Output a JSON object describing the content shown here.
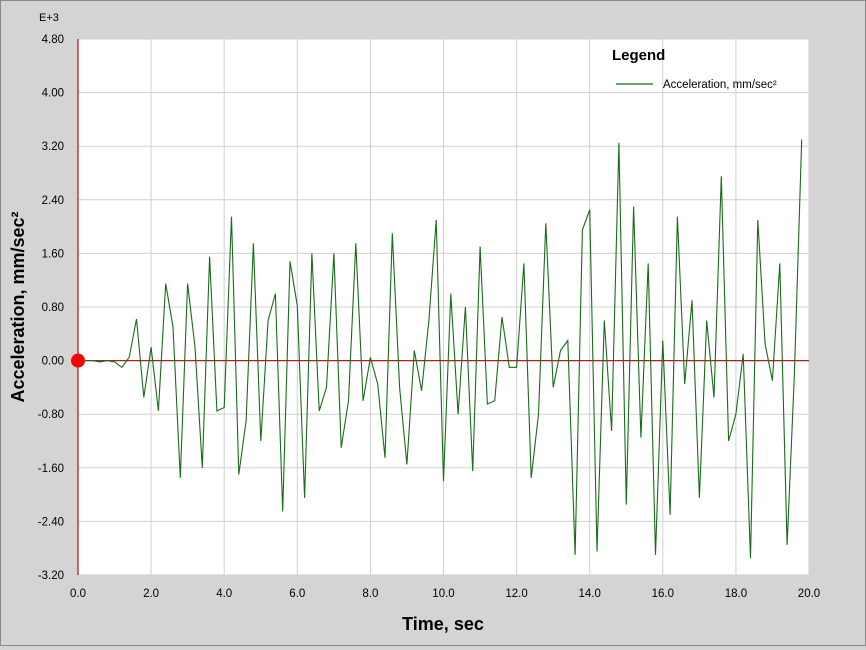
{
  "chart_data": {
    "type": "line",
    "xlabel": "Time,  sec",
    "ylabel": "Acceleration,  mm/sec²",
    "y_multiplier_label": "E+3",
    "xlim": [
      0,
      20
    ],
    "ylim": [
      -3.2,
      4.8
    ],
    "x_ticks": [
      "0.0",
      "2.0",
      "4.0",
      "6.0",
      "8.0",
      "10.0",
      "12.0",
      "14.0",
      "16.0",
      "18.0",
      "20.0"
    ],
    "y_ticks": [
      "-3.20",
      "-2.40",
      "-1.60",
      "-0.80",
      "0.00",
      "0.80",
      "1.60",
      "2.40",
      "3.20",
      "4.00",
      "4.80"
    ],
    "grid": true,
    "legend": {
      "title": "Legend",
      "position": "top-right"
    },
    "marker": {
      "x": 0,
      "y": 0,
      "color": "#ff0000"
    },
    "zero_line_color": "#b02020",
    "series": [
      {
        "name": "Acceleration, mm/sec²",
        "color": "#1a6b1a",
        "points": [
          [
            0,
            0
          ],
          [
            0.4,
            0
          ],
          [
            0.6,
            -0.02
          ],
          [
            0.8,
            0
          ],
          [
            1.0,
            -0.02
          ],
          [
            1.2,
            -0.1
          ],
          [
            1.4,
            0.05
          ],
          [
            1.6,
            0.62
          ],
          [
            1.8,
            -0.55
          ],
          [
            2.0,
            0.2
          ],
          [
            2.2,
            -0.75
          ],
          [
            2.4,
            1.15
          ],
          [
            2.6,
            0.5
          ],
          [
            2.8,
            -1.75
          ],
          [
            3.0,
            1.15
          ],
          [
            3.2,
            0.2
          ],
          [
            3.4,
            -1.6
          ],
          [
            3.6,
            1.55
          ],
          [
            3.8,
            -0.75
          ],
          [
            4.0,
            -0.7
          ],
          [
            4.2,
            2.15
          ],
          [
            4.4,
            -1.7
          ],
          [
            4.6,
            -0.9
          ],
          [
            4.8,
            1.75
          ],
          [
            5.0,
            -1.2
          ],
          [
            5.2,
            0.6
          ],
          [
            5.4,
            1.0
          ],
          [
            5.6,
            -2.25
          ],
          [
            5.8,
            1.48
          ],
          [
            6.0,
            0.82
          ],
          [
            6.2,
            -2.05
          ],
          [
            6.4,
            1.6
          ],
          [
            6.6,
            -0.75
          ],
          [
            6.8,
            -0.4
          ],
          [
            7.0,
            1.6
          ],
          [
            7.2,
            -1.3
          ],
          [
            7.4,
            -0.6
          ],
          [
            7.6,
            1.75
          ],
          [
            7.8,
            -0.6
          ],
          [
            8.0,
            0.05
          ],
          [
            8.2,
            -0.35
          ],
          [
            8.4,
            -1.45
          ],
          [
            8.6,
            1.9
          ],
          [
            8.8,
            -0.4
          ],
          [
            9.0,
            -1.55
          ],
          [
            9.2,
            0.15
          ],
          [
            9.4,
            -0.45
          ],
          [
            9.6,
            0.6
          ],
          [
            9.8,
            2.1
          ],
          [
            10.0,
            -1.8
          ],
          [
            10.2,
            1.0
          ],
          [
            10.4,
            -0.8
          ],
          [
            10.6,
            0.8
          ],
          [
            10.8,
            -1.65
          ],
          [
            11.0,
            1.7
          ],
          [
            11.2,
            -0.65
          ],
          [
            11.4,
            -0.6
          ],
          [
            11.6,
            0.65
          ],
          [
            11.8,
            -0.1
          ],
          [
            12.0,
            -0.1
          ],
          [
            12.2,
            1.45
          ],
          [
            12.4,
            -1.75
          ],
          [
            12.6,
            -0.8
          ],
          [
            12.8,
            2.05
          ],
          [
            13.0,
            -0.4
          ],
          [
            13.2,
            0.15
          ],
          [
            13.4,
            0.3
          ],
          [
            13.6,
            -2.9
          ],
          [
            13.8,
            1.95
          ],
          [
            14.0,
            2.25
          ],
          [
            14.2,
            -2.85
          ],
          [
            14.4,
            0.6
          ],
          [
            14.6,
            -1.05
          ],
          [
            14.8,
            3.25
          ],
          [
            15.0,
            -2.15
          ],
          [
            15.2,
            2.3
          ],
          [
            15.4,
            -1.15
          ],
          [
            15.6,
            1.45
          ],
          [
            15.8,
            -2.9
          ],
          [
            16.0,
            0.3
          ],
          [
            16.2,
            -2.3
          ],
          [
            16.4,
            2.15
          ],
          [
            16.6,
            -0.35
          ],
          [
            16.8,
            0.9
          ],
          [
            17.0,
            -2.05
          ],
          [
            17.2,
            0.6
          ],
          [
            17.4,
            -0.55
          ],
          [
            17.6,
            2.75
          ],
          [
            17.8,
            -1.2
          ],
          [
            18.0,
            -0.8
          ],
          [
            18.2,
            0.1
          ],
          [
            18.4,
            -2.95
          ],
          [
            18.6,
            2.1
          ],
          [
            18.8,
            0.25
          ],
          [
            19.0,
            -0.3
          ],
          [
            19.2,
            1.45
          ],
          [
            19.4,
            -2.75
          ],
          [
            19.6,
            -0.2
          ],
          [
            19.8,
            3.3
          ]
        ]
      }
    ]
  }
}
